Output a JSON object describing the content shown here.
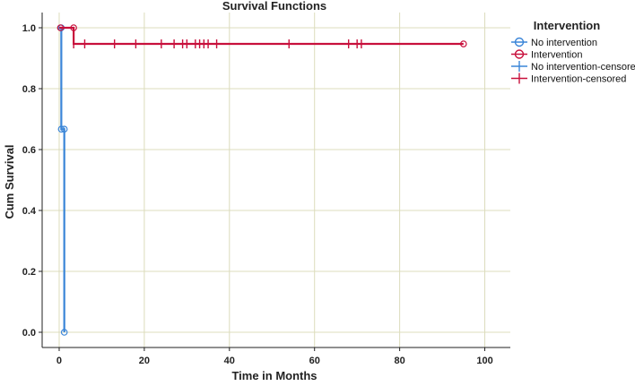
{
  "chart_data": {
    "type": "line",
    "step": true,
    "title": "Survival Functions",
    "xlabel": "Time in Months",
    "ylabel": "Cum Survival",
    "xlim": [
      -4,
      106
    ],
    "ylim": [
      -0.05,
      1.05
    ],
    "xticks": [
      0,
      20,
      40,
      60,
      80,
      100
    ],
    "xtick_labels": [
      "0",
      "20",
      "40",
      "60",
      "80",
      "100"
    ],
    "yticks": [
      0.0,
      0.2,
      0.4,
      0.6,
      0.8,
      1.0
    ],
    "ytick_labels": [
      "0.0",
      "0.2",
      "0.4",
      "0.6",
      "0.8",
      "1.0"
    ],
    "grid": true,
    "legend": {
      "title": "Intervention",
      "placement": "right",
      "entries": [
        "No intervention",
        "Intervention",
        "No intervention-censored",
        "Intervention-censored"
      ]
    },
    "series": [
      {
        "name": "No intervention",
        "color": "#3a85d8",
        "marker": "open-circle",
        "steps": [
          [
            0,
            1.0
          ],
          [
            0.5,
            0.667
          ],
          [
            1.2,
            0.0
          ]
        ],
        "event_markers": [
          [
            0.5,
            1.0
          ],
          [
            0.5,
            0.667
          ],
          [
            1.2,
            0.667
          ],
          [
            1.2,
            0.0
          ]
        ],
        "censored": []
      },
      {
        "name": "Intervention",
        "color": "#c8103c",
        "marker": "open-circle",
        "steps": [
          [
            0,
            1.0
          ],
          [
            3.4,
            0.947
          ],
          [
            95,
            0.947
          ]
        ],
        "event_markers": [
          [
            0.3,
            1.0
          ],
          [
            3.4,
            1.0
          ],
          [
            95,
            0.947
          ]
        ],
        "censored": [
          3.4,
          6,
          13,
          18,
          24,
          27,
          29,
          30,
          32,
          33,
          34,
          35,
          37,
          54,
          68,
          70,
          71
        ]
      }
    ]
  }
}
